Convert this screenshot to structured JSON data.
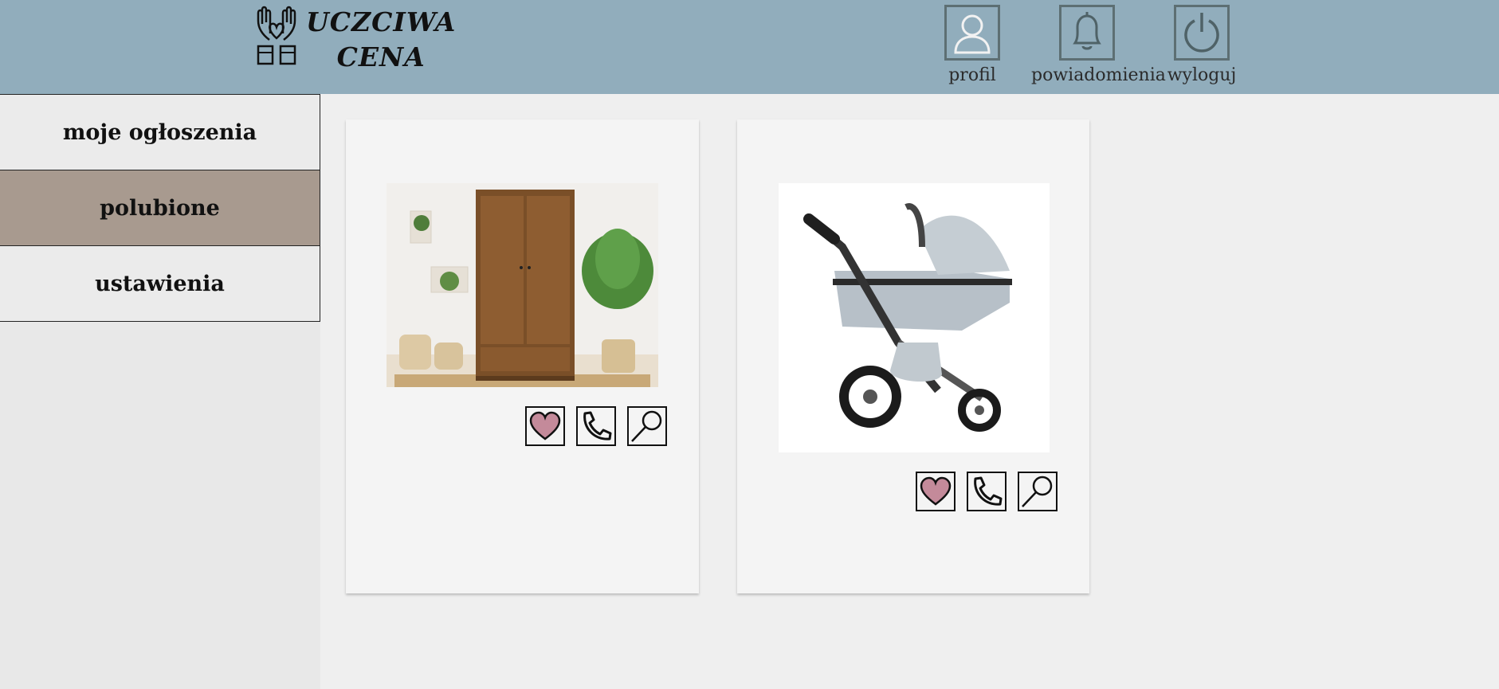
{
  "brand": {
    "line1": "UCZCIWA",
    "line2": "CENA"
  },
  "topnav": [
    {
      "label": "profil",
      "icon": "user-icon"
    },
    {
      "label": "powiadomienia",
      "icon": "bell-icon"
    },
    {
      "label": "wyloguj",
      "icon": "power-icon"
    }
  ],
  "sidebar": {
    "items": [
      {
        "label": "moje ogłoszenia",
        "active": false
      },
      {
        "label": "polubione",
        "active": true
      },
      {
        "label": "ustawienia",
        "active": false
      }
    ]
  },
  "listings": [
    {
      "image": "wooden-wardrobe-photo"
    },
    {
      "image": "baby-stroller-photo"
    }
  ],
  "colors": {
    "header": "#91adbc",
    "active_sidebar": "#a89a8f",
    "heart_fill": "#c48a9a"
  }
}
